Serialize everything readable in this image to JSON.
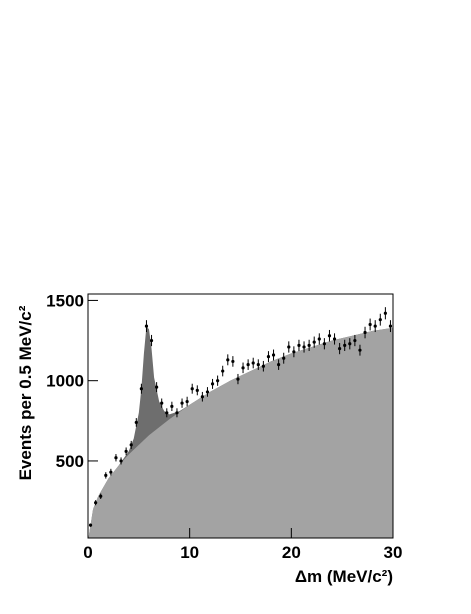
{
  "chart_data": {
    "type": "scatter",
    "x_label": "Δm (MeV/c²)",
    "y_label": "Events per 0.5 MeV/c²",
    "xlim": [
      0,
      30
    ],
    "ylim": [
      20,
      1540
    ],
    "xticks": [
      0,
      10,
      20,
      30
    ],
    "yticks": [
      500,
      1000,
      1500
    ],
    "x": [
      0.25,
      0.75,
      1.25,
      1.75,
      2.25,
      2.75,
      3.25,
      3.75,
      4.25,
      4.75,
      5.25,
      5.75,
      6.25,
      6.75,
      7.25,
      7.75,
      8.25,
      8.75,
      9.25,
      9.75,
      10.25,
      10.75,
      11.25,
      11.75,
      12.25,
      12.75,
      13.25,
      13.75,
      14.25,
      14.75,
      15.25,
      15.75,
      16.25,
      16.75,
      17.25,
      17.75,
      18.25,
      18.75,
      19.25,
      19.75,
      20.25,
      20.75,
      21.25,
      21.75,
      22.25,
      22.75,
      23.25,
      23.75,
      24.25,
      24.75,
      25.25,
      25.75,
      26.25,
      26.75,
      27.25,
      27.75,
      28.25,
      28.75,
      29.25,
      29.75
    ],
    "values": [
      100,
      240,
      280,
      410,
      430,
      520,
      500,
      560,
      600,
      740,
      950,
      1340,
      1250,
      960,
      860,
      800,
      840,
      800,
      860,
      870,
      950,
      940,
      900,
      930,
      980,
      1000,
      1060,
      1130,
      1120,
      1010,
      1080,
      1100,
      1110,
      1100,
      1090,
      1150,
      1160,
      1100,
      1140,
      1210,
      1180,
      1220,
      1210,
      1220,
      1240,
      1260,
      1230,
      1280,
      1260,
      1200,
      1220,
      1230,
      1250,
      1190,
      1300,
      1350,
      1340,
      1380,
      1420,
      1340
    ],
    "errors": [
      10,
      16,
      17,
      20,
      21,
      23,
      22,
      24,
      25,
      27,
      31,
      37,
      35,
      31,
      29,
      28,
      29,
      28,
      29,
      30,
      31,
      31,
      30,
      30,
      31,
      32,
      33,
      34,
      33,
      32,
      33,
      33,
      33,
      33,
      33,
      34,
      34,
      33,
      34,
      35,
      34,
      35,
      35,
      35,
      35,
      35,
      35,
      36,
      35,
      35,
      35,
      35,
      35,
      34,
      36,
      37,
      37,
      37,
      38,
      37
    ],
    "color": "#000000",
    "curves": [
      {
        "color": "#6e6e6e",
        "x": [
          0,
          0.5,
          1,
          2,
          3,
          4,
          4.5,
          5,
          5.25,
          5.5,
          5.75,
          6,
          6.25,
          6.5,
          7,
          7.5,
          8,
          9,
          10,
          12,
          14,
          16,
          18,
          20,
          22,
          24,
          26,
          28,
          30
        ],
        "values": [
          0,
          200,
          280,
          390,
          470,
          560,
          640,
          800,
          950,
          1170,
          1340,
          1320,
          1200,
          1020,
          870,
          810,
          790,
          810,
          850,
          930,
          1000,
          1060,
          1120,
          1170,
          1210,
          1250,
          1280,
          1310,
          1330
        ]
      },
      {
        "color": "#a3a3a3",
        "x": [
          0,
          0.5,
          1,
          2,
          3,
          4,
          5,
          6,
          7,
          8,
          10,
          12,
          14,
          16,
          18,
          20,
          22,
          24,
          26,
          28,
          30
        ],
        "values": [
          0,
          200,
          280,
          390,
          470,
          540,
          600,
          660,
          710,
          760,
          850,
          930,
          1000,
          1060,
          1120,
          1170,
          1210,
          1250,
          1280,
          1310,
          1330
        ]
      }
    ]
  }
}
